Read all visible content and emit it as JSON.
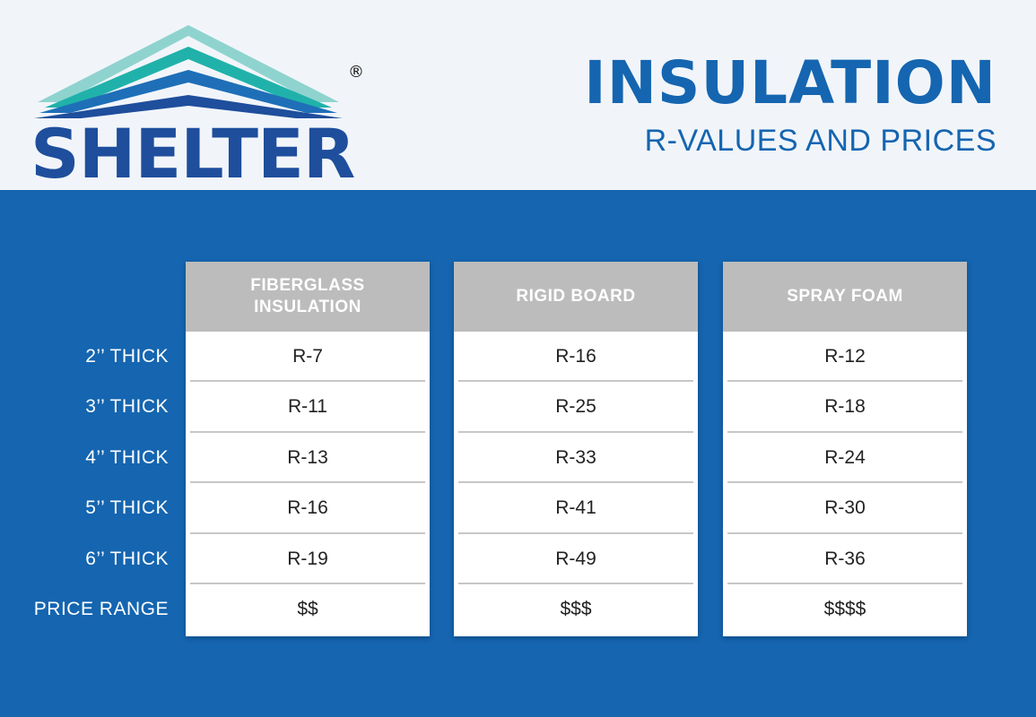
{
  "brand": {
    "name": "SHELTER",
    "registered": "®",
    "logo_icon": "roof-stripes-logo"
  },
  "title": "INSULATION",
  "subtitle": "R-VALUES AND PRICES",
  "colors": {
    "primary_blue": "#1565b0",
    "logo_navy": "#1e4e9c",
    "teal": "#20b2aa",
    "header_bg": "#f1f5fa",
    "column_header_gray": "#bcbcbc"
  },
  "row_labels": [
    "2’’ THICK",
    "3’’ THICK",
    "4’’ THICK",
    "5’’ THICK",
    "6’’ THICK",
    "PRICE RANGE"
  ],
  "columns": [
    {
      "header_line1": "FIBERGLASS",
      "header_line2": "INSULATION",
      "values": [
        "R-7",
        "R-11",
        "R-13",
        "R-16",
        "R-19",
        "$$"
      ]
    },
    {
      "header_line1": "RIGID BOARD",
      "header_line2": "",
      "values": [
        "R-16",
        "R-25",
        "R-33",
        "R-41",
        "R-49",
        "$$$"
      ]
    },
    {
      "header_line1": "SPRAY FOAM",
      "header_line2": "",
      "values": [
        "R-12",
        "R-18",
        "R-24",
        "R-30",
        "R-36",
        "$$$$"
      ]
    }
  ]
}
